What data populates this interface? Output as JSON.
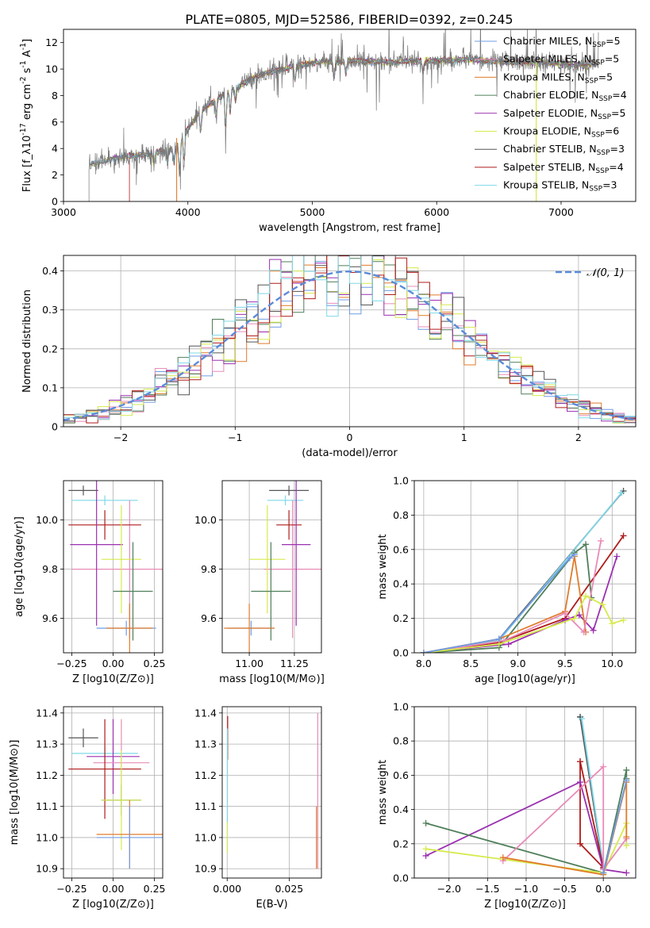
{
  "figure": {
    "title": "PLATE=0805, MJD=52586, FIBERID=0392, z=0.245"
  },
  "colors": {
    "chabrier_miles": "#6f9ce6",
    "salpeter_miles": "#e88bb8",
    "kroupa_miles": "#e07b2a",
    "chabrier_elodie": "#4f7f5a",
    "salpeter_elodie": "#9b30b0",
    "kroupa_elodie": "#d6ea4c",
    "chabrier_stelib": "#555555",
    "salpeter_stelib": "#b01b1b",
    "kroupa_stelib": "#7fd8e6",
    "gaussian": "#5b8bd9",
    "grid": "#b0b0b0"
  },
  "chart_data": [
    {
      "id": "spectrum",
      "type": "line",
      "xlabel": "wavelength [Angstrom, rest frame]",
      "ylabel": "Flux [f_λ10^-17 erg cm^-2 s^-1 A^-1]",
      "xlim": [
        3000,
        7600
      ],
      "ylim": [
        0,
        13
      ],
      "xticks": [
        3000,
        4000,
        5000,
        6000,
        7000
      ],
      "yticks": [
        0,
        2,
        4,
        6,
        8,
        10,
        12
      ],
      "grid": false,
      "legend_position": "right",
      "series": [
        {
          "name": "Chabrier MILES, N_SSP=5",
          "key": "chabrier_miles"
        },
        {
          "name": "Salpeter MILES, N_SSP=5",
          "key": "salpeter_miles"
        },
        {
          "name": "Kroupa MILES, N_SSP=5",
          "key": "kroupa_miles"
        },
        {
          "name": "Chabrier ELODIE, N_SSP=4",
          "key": "chabrier_elodie"
        },
        {
          "name": "Salpeter ELODIE, N_SSP=5",
          "key": "salpeter_elodie"
        },
        {
          "name": "Kroupa ELODIE, N_SSP=6",
          "key": "kroupa_elodie"
        },
        {
          "name": "Chabrier STELIB, N_SSP=3",
          "key": "chabrier_stelib"
        },
        {
          "name": "Salpeter STELIB, N_SSP=4",
          "key": "salpeter_stelib"
        },
        {
          "name": "Kroupa STELIB, N_SSP=3",
          "key": "kroupa_stelib"
        }
      ],
      "continuum": {
        "x": [
          3200,
          3300,
          3400,
          3500,
          3600,
          3700,
          3800,
          3900,
          4000,
          4100,
          4200,
          4300,
          4400,
          4500,
          4600,
          4800,
          5000,
          5200,
          5400,
          5600,
          5800,
          6000,
          6200,
          6400,
          6600,
          6800,
          7000,
          7200,
          7300
        ],
        "y": [
          2.7,
          3.0,
          3.2,
          3.4,
          3.5,
          3.6,
          3.8,
          4.0,
          5.5,
          6.8,
          7.5,
          8.2,
          8.6,
          9.3,
          9.6,
          10.1,
          10.5,
          10.6,
          10.6,
          10.5,
          10.6,
          10.6,
          10.7,
          10.6,
          10.5,
          10.5,
          10.4,
          10.3,
          10.4
        ]
      },
      "absorption_dips": [
        {
          "x": 3727,
          "depth": 0.8
        },
        {
          "x": 3835,
          "depth": 1.0
        },
        {
          "x": 3889,
          "depth": 1.2
        },
        {
          "x": 3934,
          "depth": 2.4
        },
        {
          "x": 3969,
          "depth": 2.0
        },
        {
          "x": 4102,
          "depth": 1.5
        },
        {
          "x": 4227,
          "depth": 1.2
        },
        {
          "x": 4304,
          "depth": 2.5
        },
        {
          "x": 4340,
          "depth": 1.6
        },
        {
          "x": 4383,
          "depth": 1.0
        },
        {
          "x": 4861,
          "depth": 1.1
        },
        {
          "x": 5175,
          "depth": 1.3
        },
        {
          "x": 5270,
          "depth": 0.9
        },
        {
          "x": 5890,
          "depth": 0.9
        }
      ],
      "data_trace_key": "chabrier_stelib"
    },
    {
      "id": "residuals",
      "type": "step",
      "xlabel": "(data-model)/error",
      "ylabel": "Normed distribution",
      "xlim": [
        -2.5,
        2.5
      ],
      "ylim": [
        0,
        0.44
      ],
      "xticks": [
        -2,
        -1,
        0,
        1,
        2
      ],
      "yticks": [
        0.0,
        0.1,
        0.2,
        0.3,
        0.4
      ],
      "grid": true,
      "legend": {
        "label": "𝒩(0, 1)",
        "position": "top-right"
      },
      "bin_width": 0.1,
      "gaussian": {
        "mean": 0,
        "sigma": 1
      }
    },
    {
      "id": "z-vs-age",
      "type": "errorbar",
      "xlabel": "Z [log10(Z/Z⊙)]",
      "ylabel": "age  [log10(age/yr)]",
      "xlim": [
        -0.3,
        0.3
      ],
      "ylim": [
        9.46,
        10.16
      ],
      "xticks": [
        -0.25,
        0.0,
        0.25
      ],
      "xticklabels": [
        "−0.25",
        "0.00",
        "0.25"
      ],
      "yticks": [
        9.6,
        9.8,
        10.0
      ],
      "yticklabels": [
        "9.6",
        "9.8",
        "10.0"
      ],
      "grid": true,
      "points": [
        {
          "key": "chabrier_stelib",
          "x": -0.18,
          "xerr": 0.09,
          "y": 10.12,
          "yerr": 0.02
        },
        {
          "key": "kroupa_stelib",
          "x": -0.05,
          "xerr": 0.2,
          "y": 10.08,
          "yerr": 0.02
        },
        {
          "key": "salpeter_miles",
          "x": 0.1,
          "xerr": 0.35,
          "y": 9.8,
          "yerr": 0.28
        },
        {
          "key": "salpeter_stelib",
          "x": -0.05,
          "xerr": 0.22,
          "y": 9.98,
          "yerr": 0.06
        },
        {
          "key": "salpeter_elodie",
          "x": -0.1,
          "xerr": 0.16,
          "y": 9.9,
          "yerr": 0.33
        },
        {
          "key": "kroupa_elodie",
          "x": 0.05,
          "xerr": 0.12,
          "y": 9.84,
          "yerr": 0.22
        },
        {
          "key": "chabrier_elodie",
          "x": 0.12,
          "xerr": 0.12,
          "y": 9.71,
          "yerr": 0.2
        },
        {
          "key": "chabrier_miles",
          "x": 0.08,
          "xerr": 0.18,
          "y": 9.56,
          "yerr": 0.03
        },
        {
          "key": "kroupa_miles",
          "x": 0.1,
          "xerr": 0.14,
          "y": 9.56,
          "yerr": 0.1
        }
      ]
    },
    {
      "id": "mass-vs-age",
      "type": "errorbar",
      "xlabel": "mass [log10(M/M⊙)]",
      "ylabel": "",
      "xlim": [
        10.85,
        11.4
      ],
      "ylim": [
        9.46,
        10.16
      ],
      "xticks": [
        11.0,
        11.25
      ],
      "xticklabels": [
        "11.00",
        "11.25"
      ],
      "yticks": [
        9.6,
        9.8,
        10.0
      ],
      "yticklabels": [
        "9.6",
        "9.8",
        "10.0"
      ],
      "grid": true,
      "points": [
        {
          "key": "chabrier_stelib",
          "x": 11.22,
          "xerr": 0.11,
          "y": 10.12,
          "yerr": 0.02
        },
        {
          "key": "kroupa_stelib",
          "x": 11.2,
          "xerr": 0.1,
          "y": 10.08,
          "yerr": 0.02
        },
        {
          "key": "salpeter_miles",
          "x": 11.24,
          "xerr": 0.16,
          "y": 9.8,
          "yerr": 0.28
        },
        {
          "key": "salpeter_stelib",
          "x": 11.22,
          "xerr": 0.07,
          "y": 9.98,
          "yerr": 0.06
        },
        {
          "key": "salpeter_elodie",
          "x": 11.26,
          "xerr": 0.08,
          "y": 9.9,
          "yerr": 0.33
        },
        {
          "key": "kroupa_elodie",
          "x": 11.1,
          "xerr": 0.1,
          "y": 9.84,
          "yerr": 0.22
        },
        {
          "key": "chabrier_elodie",
          "x": 11.12,
          "xerr": 0.11,
          "y": 9.71,
          "yerr": 0.2
        },
        {
          "key": "chabrier_miles",
          "x": 11.01,
          "xerr": 0.13,
          "y": 9.56,
          "yerr": 0.03
        },
        {
          "key": "kroupa_miles",
          "x": 11.0,
          "xerr": 0.14,
          "y": 9.56,
          "yerr": 0.1
        }
      ]
    },
    {
      "id": "age-vs-weight",
      "type": "line",
      "xlabel": "age  [log10(age/yr)]",
      "ylabel": "mass weight",
      "xlim": [
        7.9,
        10.25
      ],
      "ylim": [
        0,
        1
      ],
      "xticks": [
        8.0,
        8.5,
        9.0,
        9.5,
        10.0
      ],
      "xticklabels": [
        "8.0",
        "8.5",
        "9.0",
        "9.5",
        "10.0"
      ],
      "yticks": [
        0.0,
        0.2,
        0.4,
        0.6,
        0.8,
        1.0
      ],
      "yticklabels": [
        "0.0",
        "0.2",
        "0.4",
        "0.6",
        "0.8",
        "1.0"
      ],
      "grid": true,
      "series": [
        {
          "key": "chabrier_stelib",
          "x": [
            8.0,
            8.8,
            10.12
          ],
          "y": [
            0.0,
            0.08,
            0.94
          ]
        },
        {
          "key": "kroupa_stelib",
          "x": [
            8.0,
            8.8,
            10.1
          ],
          "y": [
            0.0,
            0.07,
            0.93
          ]
        },
        {
          "key": "salpeter_stelib",
          "x": [
            8.0,
            8.8,
            9.5,
            10.12
          ],
          "y": [
            0.0,
            0.06,
            0.2,
            0.68
          ]
        },
        {
          "key": "salpeter_elodie",
          "x": [
            8.0,
            8.9,
            9.5,
            9.65,
            9.8,
            10.05
          ],
          "y": [
            0.0,
            0.05,
            0.19,
            0.22,
            0.13,
            0.56
          ]
        },
        {
          "key": "chabrier_elodie",
          "x": [
            8.0,
            8.8,
            9.6,
            9.72,
            9.78
          ],
          "y": [
            0.0,
            0.03,
            0.58,
            0.63,
            0.32
          ]
        },
        {
          "key": "kroupa_miles",
          "x": [
            8.0,
            8.8,
            9.5,
            9.6,
            9.72
          ],
          "y": [
            0.0,
            0.08,
            0.24,
            0.56,
            0.12
          ]
        },
        {
          "key": "salpeter_miles",
          "x": [
            8.0,
            8.85,
            9.5,
            9.7,
            9.88
          ],
          "y": [
            0.0,
            0.07,
            0.23,
            0.12,
            0.65
          ]
        },
        {
          "key": "kroupa_elodie",
          "x": [
            8.0,
            8.8,
            9.6,
            9.72,
            9.9,
            10.0,
            10.12
          ],
          "y": [
            0.0,
            0.05,
            0.2,
            0.33,
            0.28,
            0.17,
            0.19
          ]
        },
        {
          "key": "chabrier_miles",
          "x": [
            8.0,
            8.8,
            9.55,
            9.6
          ],
          "y": [
            0.0,
            0.08,
            0.55,
            0.57
          ]
        }
      ]
    },
    {
      "id": "z-vs-mass",
      "type": "errorbar",
      "xlabel": "Z [log10(Z/Z⊙)]",
      "ylabel": "mass [log10(M/M⊙)]",
      "xlim": [
        -0.3,
        0.3
      ],
      "ylim": [
        10.87,
        11.42
      ],
      "xticks": [
        -0.25,
        0.0,
        0.25
      ],
      "xticklabels": [
        "−0.25",
        "0.00",
        "0.25"
      ],
      "yticks": [
        10.9,
        11.0,
        11.1,
        11.2,
        11.3,
        11.4
      ],
      "yticklabels": [
        "10.9",
        "11.0",
        "11.1",
        "11.2",
        "11.3",
        "11.4"
      ],
      "grid": true,
      "points": [
        {
          "key": "chabrier_stelib",
          "x": -0.18,
          "xerr": 0.09,
          "y": 11.32,
          "yerr": 0.03
        },
        {
          "key": "kroupa_stelib",
          "x": -0.05,
          "xerr": 0.2,
          "y": 11.27,
          "yerr": 0.02
        },
        {
          "key": "salpeter_elodie",
          "x": 0.0,
          "xerr": 0.16,
          "y": 11.26,
          "yerr": 0.12
        },
        {
          "key": "salpeter_miles",
          "x": 0.05,
          "xerr": 0.17,
          "y": 11.24,
          "yerr": 0.14
        },
        {
          "key": "salpeter_stelib",
          "x": -0.05,
          "xerr": 0.22,
          "y": 11.22,
          "yerr": 0.16
        },
        {
          "key": "chabrier_elodie",
          "x": 0.05,
          "xerr": 0.12,
          "y": 11.12,
          "yerr": 0.05
        },
        {
          "key": "kroupa_elodie",
          "x": 0.05,
          "xerr": 0.12,
          "y": 11.12,
          "yerr": 0.16
        },
        {
          "key": "kroupa_miles",
          "x": 0.1,
          "xerr": 0.2,
          "y": 11.01,
          "yerr": 0.11
        },
        {
          "key": "chabrier_miles",
          "x": 0.1,
          "xerr": 0.2,
          "y": 11.0,
          "yerr": 0.1
        }
      ]
    },
    {
      "id": "ebv-vs-mass",
      "type": "errorbar",
      "xlabel": "E(B-V)",
      "ylabel": "",
      "xlim": [
        -0.002,
        0.038
      ],
      "ylim": [
        10.87,
        11.42
      ],
      "xticks": [
        0.0,
        0.025
      ],
      "xticklabels": [
        "0.000",
        "0.025"
      ],
      "yticks": [
        10.9,
        11.0,
        11.1,
        11.2,
        11.3,
        11.4
      ],
      "yticklabels": [
        "10.9",
        "11.0",
        "11.1",
        "11.2",
        "11.3",
        "11.4"
      ],
      "grid": true,
      "points": [
        {
          "key": "salpeter_stelib",
          "x": 0.0002,
          "xerr": 0,
          "y": 11.32,
          "yerr": 0.07
        },
        {
          "key": "kroupa_stelib",
          "x": 0.0001,
          "xerr": 0,
          "y": 11.2,
          "yerr": 0.15
        },
        {
          "key": "kroupa_elodie",
          "x": 0.0001,
          "xerr": 0,
          "y": 11.0,
          "yerr": 0.05
        },
        {
          "key": "salpeter_miles",
          "x": 0.0365,
          "xerr": 0,
          "y": 11.15,
          "yerr": 0.25
        },
        {
          "key": "kroupa_miles",
          "x": 0.036,
          "xerr": 0,
          "y": 11.0,
          "yerr": 0.1
        }
      ]
    },
    {
      "id": "z-vs-weight",
      "type": "line",
      "xlabel": "Z [log10(Z/Z⊙)]",
      "ylabel": "mass weight",
      "xlim": [
        -2.45,
        0.42
      ],
      "ylim": [
        0,
        1
      ],
      "xticks": [
        -2.0,
        -1.5,
        -1.0,
        -0.5,
        0.0
      ],
      "xticklabels": [
        "−2.0",
        "−1.5",
        "−1.0",
        "−0.5",
        "0.0"
      ],
      "yticks": [
        0.0,
        0.2,
        0.4,
        0.6,
        0.8,
        1.0
      ],
      "yticklabels": [
        "0.0",
        "0.2",
        "0.4",
        "0.6",
        "0.8",
        "1.0"
      ],
      "grid": true,
      "series": [
        {
          "key": "chabrier_stelib",
          "x": [
            -0.3,
            0.0,
            -0.3
          ],
          "y": [
            0.94,
            0.06,
            0.94
          ]
        },
        {
          "key": "kroupa_stelib",
          "x": [
            -0.28,
            0.0
          ],
          "y": [
            0.93,
            0.07
          ]
        },
        {
          "key": "salpeter_stelib",
          "x": [
            -0.3,
            -0.3,
            0.0,
            -0.3
          ],
          "y": [
            0.68,
            0.2,
            0.06,
            0.68
          ]
        },
        {
          "key": "salpeter_elodie",
          "x": [
            -2.3,
            -0.3,
            0.0,
            0.3
          ],
          "y": [
            0.13,
            0.56,
            0.05,
            0.03
          ]
        },
        {
          "key": "chabrier_elodie",
          "x": [
            -2.3,
            0.0,
            0.3,
            0.3
          ],
          "y": [
            0.32,
            0.03,
            0.63,
            0.58
          ]
        },
        {
          "key": "kroupa_elodie",
          "x": [
            -2.3,
            0.0,
            0.3,
            0.3
          ],
          "y": [
            0.17,
            0.03,
            0.32,
            0.19
          ]
        },
        {
          "key": "salpeter_miles",
          "x": [
            -1.3,
            0.0,
            0.0,
            0.3
          ],
          "y": [
            0.1,
            0.65,
            0.05,
            0.23
          ]
        },
        {
          "key": "kroupa_miles",
          "x": [
            -1.3,
            0.0,
            0.3,
            0.3
          ],
          "y": [
            0.12,
            0.02,
            0.56,
            0.24
          ]
        },
        {
          "key": "chabrier_miles",
          "x": [
            0.0,
            0.3
          ],
          "y": [
            0.03,
            0.57
          ]
        }
      ]
    }
  ]
}
